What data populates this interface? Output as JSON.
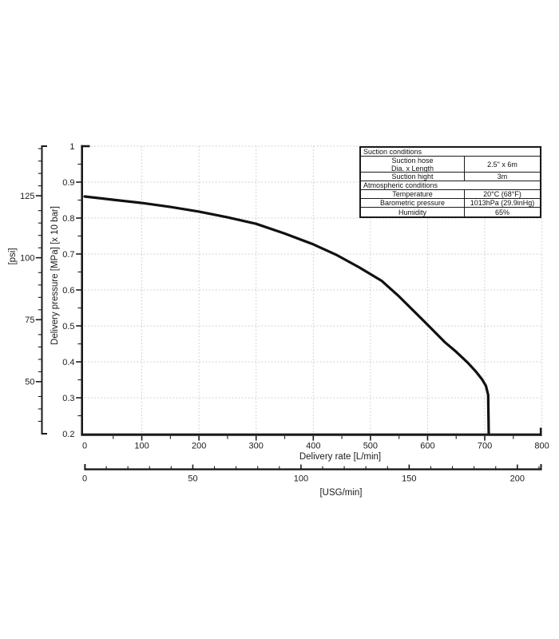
{
  "page": {
    "background": "#ffffff"
  },
  "chart_data": {
    "type": "line",
    "xlabel": "Delivery rate [L/min]",
    "xlabel_secondary": "[USG/min]",
    "ylabel": "Delivery pressure [MPa] [x 10 bar]",
    "ylabel_secondary": "[psi]",
    "x_axis": {
      "min": 0,
      "max": 800,
      "major_ticks": [
        0,
        100,
        200,
        300,
        400,
        500,
        600,
        700,
        800
      ],
      "minor_step": 50
    },
    "y_axis": {
      "min": 0.2,
      "max": 1,
      "major_ticks": [
        1,
        0.9,
        0.8,
        0.7,
        0.6,
        0.5,
        0.4,
        0.3,
        0.2
      ],
      "minor_step": 0.05
    },
    "psi_axis": {
      "min": 29,
      "max": 145,
      "labeled_ticks": [
        125,
        100,
        75,
        50
      ],
      "minor_step": 5
    },
    "usg_axis": {
      "min": 0,
      "max": 211,
      "labeled_ticks": [
        0,
        50,
        100,
        150,
        200
      ],
      "minor_step": 10,
      "lmin_per_usg": 3.785
    },
    "grid": {
      "x_step": 100,
      "y_step": 0.1,
      "style": "dotted",
      "color": "#c6c6c6"
    },
    "axis_color": "#1a1a1a",
    "series": [
      {
        "name": "delivery-pressure-curve",
        "color": "#111111",
        "points": [
          [
            0,
            0.86
          ],
          [
            50,
            0.851
          ],
          [
            100,
            0.842
          ],
          [
            150,
            0.831
          ],
          [
            200,
            0.818
          ],
          [
            250,
            0.802
          ],
          [
            300,
            0.784
          ],
          [
            350,
            0.757
          ],
          [
            400,
            0.727
          ],
          [
            440,
            0.698
          ],
          [
            480,
            0.663
          ],
          [
            520,
            0.625
          ],
          [
            550,
            0.582
          ],
          [
            600,
            0.503
          ],
          [
            630,
            0.455
          ],
          [
            650,
            0.428
          ],
          [
            670,
            0.398
          ],
          [
            685,
            0.372
          ],
          [
            695,
            0.352
          ],
          [
            702,
            0.333
          ],
          [
            706,
            0.308
          ],
          [
            707,
            0.2
          ]
        ]
      }
    ]
  },
  "conditions_table": {
    "suction_header": "Suction conditions",
    "hose_label_line1": "Suction hose",
    "hose_label_line2": "Dia. x Length",
    "hose_value": "2.5\" x 6m",
    "suction_height_label": "Suction hight",
    "suction_height_value": "3m",
    "atmospheric_header": "Atmospheric conditions",
    "temperature_label": "Temperature",
    "temperature_value": "20°C (68°F)",
    "barometric_label": "Barometric pressure",
    "barometric_value": "1013hPa (29.9inHg)",
    "humidity_label": "Humidity",
    "humidity_value": "65%"
  }
}
